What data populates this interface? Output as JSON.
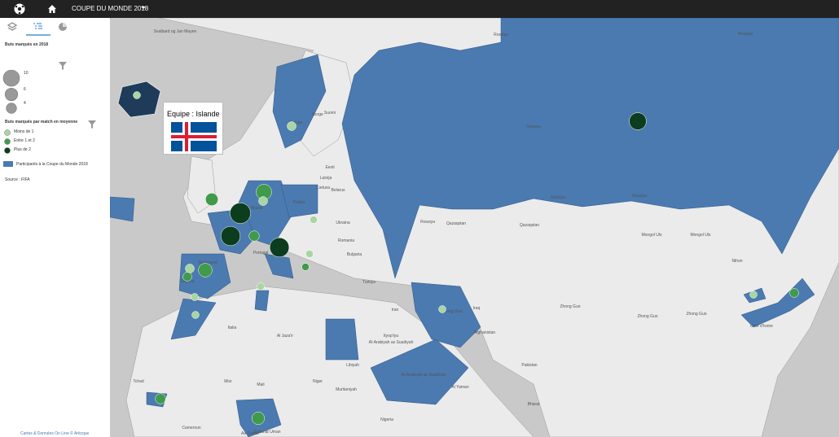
{
  "header": {
    "title": "COUPE DU MONDE 2018"
  },
  "legend": {
    "size_title": "Buts marqués en 2018",
    "size_items": [
      10,
      6,
      4
    ],
    "color_title": "Buts marqués par match en moyenne",
    "color_items": [
      {
        "label": "Moins de 1",
        "color": "#a8d5a0"
      },
      {
        "label": "Entre 1 et 2",
        "color": "#3f9a4a"
      },
      {
        "label": "Plus de 2",
        "color": "#0b3d1e"
      }
    ],
    "area_item": {
      "label": "Participants à la Coupe du Monde 2018",
      "color": "#4a7ab0"
    },
    "source": "Source : FIFA"
  },
  "popup": {
    "label": "Equipe : Islande"
  },
  "footer": {
    "credit": "Cartes & Données On Line © Articque"
  },
  "markers": [
    {
      "goals": 2,
      "class": 0
    },
    {
      "goals": 3,
      "class": 0
    },
    {
      "goals": 6,
      "class": 1
    },
    {
      "goals": 9,
      "class": 1
    },
    {
      "goals": 16,
      "class": 2
    },
    {
      "goals": 14,
      "class": 2
    },
    {
      "goals": 4,
      "class": 1
    },
    {
      "goals": 14,
      "class": 2
    },
    {
      "goals": 2,
      "class": 0
    },
    {
      "goals": 3,
      "class": 0
    },
    {
      "goals": 7,
      "class": 1
    },
    {
      "goals": 3,
      "class": 1
    },
    {
      "goals": 2,
      "class": 0
    },
    {
      "goals": 2,
      "class": 0
    },
    {
      "goals": 11,
      "class": 2
    },
    {
      "goals": 2,
      "class": 0
    },
    {
      "goals": 2,
      "class": 1
    },
    {
      "goals": 2,
      "class": 0
    },
    {
      "goals": 4,
      "class": 1
    },
    {
      "goals": 6,
      "class": 1
    },
    {
      "goals": 2,
      "class": 0
    },
    {
      "goals": 3,
      "class": 1
    },
    {
      "goals": 2,
      "class": 0
    },
    {
      "goals": 3,
      "class": 0
    }
  ],
  "map_labels": [
    "Svalbard og Jan Mayen",
    "Norge",
    "Suomi",
    "Sverige",
    "Rossiya",
    "Rossiya",
    "Rossiya",
    "Rossiya",
    "Rossiya",
    "Rossiya",
    "Eesti",
    "Latvija",
    "Lietuva",
    "Polska",
    "Belarus",
    "Ukraina",
    "Romania",
    "Bulgaria",
    "Türkiye",
    "Qazaqstan",
    "Qazaqstan",
    "Mongol Uls",
    "Mongol Uls",
    "Zhong Guo",
    "Zhong Guo",
    "Zhong Guo",
    "Zhong Guo",
    "Iran",
    "Iraq",
    "Afghanistan",
    "Pakistan",
    "Bharat",
    "Bharat",
    "Nederland",
    "Espana",
    "Portugal",
    "Italia",
    "Al Jaza'ir",
    "Libiyah",
    "Misr",
    "Mali",
    "Niger",
    "Tchad",
    "Muritaniyah",
    "As-Sudan",
    "Nigeria",
    "Ityop'iya",
    "Al-Arabiyah as Suudiyah",
    "Al-Arabiyah as Suudiyah",
    "Al Yaman",
    "Saltanat Uman",
    "Cameroun",
    "Cote d'Ivoire",
    "Nihon",
    "Zhong Guo"
  ]
}
